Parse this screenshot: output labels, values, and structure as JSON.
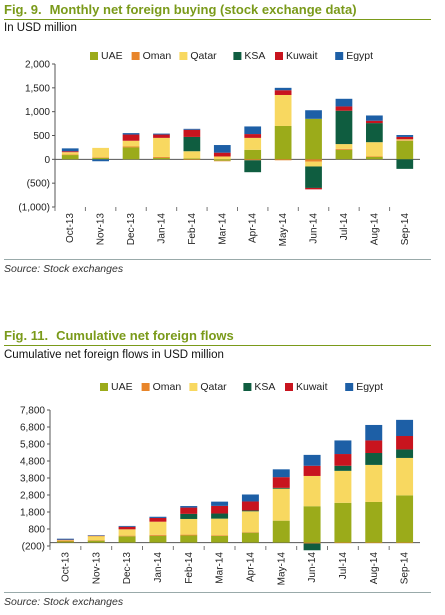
{
  "figures": [
    {
      "number": "Fig. 9.",
      "title": "Monthly net foreign buying (stock exchange data)",
      "subtitle": "In USD million",
      "source": "Source: Stock exchanges",
      "chart_data": {
        "type": "bar",
        "stacked": true,
        "categories": [
          "Oct-13",
          "Nov-13",
          "Dec-13",
          "Jan-14",
          "Feb-14",
          "Mar-14",
          "Apr-14",
          "May-14",
          "Jun-14",
          "Jul-14",
          "Aug-14",
          "Sep-14"
        ],
        "ylim": [
          -1000,
          2000
        ],
        "yticks": [
          -1000,
          -500,
          0,
          500,
          1000,
          1500,
          2000
        ],
        "ytick_labels": [
          "(1,000)",
          "(500)",
          "0",
          "500",
          "1,000",
          "1,500",
          "2,000"
        ],
        "legend_position": "top",
        "grid": false,
        "series": [
          {
            "name": "UAE",
            "color": "#9bab1a",
            "values": [
              90,
              30,
              250,
              30,
              20,
              -30,
              200,
              700,
              850,
              200,
              50,
              390
            ]
          },
          {
            "name": "Oman",
            "color": "#e8852a",
            "values": [
              10,
              10,
              20,
              20,
              -10,
              -10,
              -20,
              -20,
              -50,
              20,
              10,
              10
            ]
          },
          {
            "name": "Qatar",
            "color": "#f8d860",
            "values": [
              50,
              200,
              120,
              400,
              150,
              60,
              250,
              650,
              -100,
              100,
              300,
              20
            ]
          },
          {
            "name": "KSA",
            "color": "#0f5d40",
            "values": [
              0,
              0,
              0,
              0,
              300,
              0,
              -250,
              0,
              -450,
              700,
              400,
              -200
            ]
          },
          {
            "name": "Kuwait",
            "color": "#c8141e",
            "values": [
              20,
              0,
              130,
              70,
              150,
              80,
              80,
              100,
              -30,
              90,
              50,
              50
            ]
          },
          {
            "name": "Egypt",
            "color": "#1d5fa6",
            "values": [
              60,
              -40,
              30,
              20,
              20,
              160,
              160,
              50,
              180,
              160,
              110,
              40
            ]
          }
        ]
      }
    },
    {
      "number": "Fig. 11.",
      "title": "Cumulative net foreign flows",
      "subtitle": "Cumulative net foreign flows in USD million",
      "source": "Source: Stock exchanges",
      "chart_data": {
        "type": "bar",
        "stacked": true,
        "categories": [
          "Oct-13",
          "Nov-13",
          "Dec-13",
          "Jan-14",
          "Feb-14",
          "Mar-14",
          "Apr-14",
          "May-14",
          "Jun-14",
          "Jul-14",
          "Aug-14",
          "Sep-14"
        ],
        "ylim": [
          -200,
          7800
        ],
        "yticks": [
          -200,
          800,
          1800,
          2800,
          3800,
          4800,
          5800,
          6800,
          7800
        ],
        "ytick_labels": [
          "(200)",
          "800",
          "1,800",
          "2,800",
          "3,800",
          "4,800",
          "5,800",
          "6,800",
          "7,800"
        ],
        "legend_position": "top",
        "grid": false,
        "series": [
          {
            "name": "UAE",
            "color": "#9bab1a",
            "values": [
              90,
              120,
              370,
              400,
              420,
              390,
              590,
              1290,
              2140,
              2340,
              2390,
              2780
            ]
          },
          {
            "name": "Oman",
            "color": "#e8852a",
            "values": [
              10,
              20,
              40,
              60,
              50,
              40,
              20,
              0,
              -50,
              -30,
              -20,
              -10
            ]
          },
          {
            "name": "Qatar",
            "color": "#f8d860",
            "values": [
              50,
              250,
              370,
              770,
              920,
              980,
              1230,
              1880,
              1780,
              1880,
              2180,
              2200
            ]
          },
          {
            "name": "KSA",
            "color": "#0f5d40",
            "values": [
              0,
              0,
              0,
              0,
              300,
              300,
              50,
              50,
              -400,
              300,
              700,
              500
            ]
          },
          {
            "name": "Kuwait",
            "color": "#c8141e",
            "values": [
              20,
              20,
              150,
              220,
              370,
              450,
              530,
              630,
              600,
              690,
              740,
              790
            ]
          },
          {
            "name": "Egypt",
            "color": "#1d5fa6",
            "values": [
              60,
              20,
              50,
              70,
              90,
              250,
              410,
              460,
              640,
              800,
              910,
              950
            ]
          }
        ]
      }
    }
  ]
}
